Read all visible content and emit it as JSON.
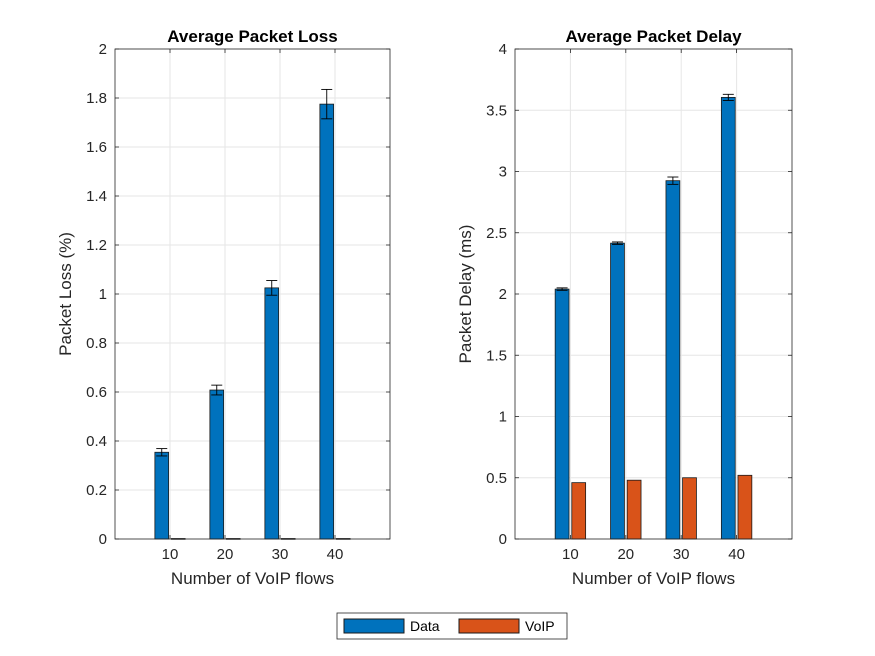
{
  "chart_data": [
    {
      "type": "bar",
      "title": "Average Packet Loss",
      "xlabel": "Number of VoIP flows",
      "ylabel": "Packet Loss (%)",
      "categories": [
        "10",
        "20",
        "30",
        "40"
      ],
      "ylim": [
        0,
        2
      ],
      "yticks": [
        "0",
        "0.2",
        "0.4",
        "0.6",
        "0.8",
        "1",
        "1.2",
        "1.4",
        "1.6",
        "1.8",
        "2"
      ],
      "grid": true,
      "series": [
        {
          "name": "Data",
          "values": [
            0.354,
            0.608,
            1.025,
            1.775
          ],
          "err_low": [
            0.339,
            0.588,
            0.995,
            1.715
          ],
          "err_high": [
            0.369,
            0.628,
            1.055,
            1.835
          ]
        },
        {
          "name": "VoIP",
          "values": [
            0.002,
            0.002,
            0.002,
            0.002
          ]
        }
      ]
    },
    {
      "type": "bar",
      "title": "Average Packet Delay",
      "xlabel": "Number of VoIP flows",
      "ylabel": "Packet Delay (ms)",
      "categories": [
        "10",
        "20",
        "30",
        "40"
      ],
      "ylim": [
        0,
        4
      ],
      "yticks": [
        "0",
        "0.5",
        "1",
        "1.5",
        "2",
        "2.5",
        "3",
        "3.5",
        "4"
      ],
      "grid": true,
      "series": [
        {
          "name": "Data",
          "values": [
            2.04,
            2.415,
            2.925,
            3.605
          ],
          "err_low": [
            2.03,
            2.405,
            2.895,
            3.58
          ],
          "err_high": [
            2.05,
            2.425,
            2.955,
            3.63
          ]
        },
        {
          "name": "VoIP",
          "values": [
            0.46,
            0.48,
            0.5,
            0.52
          ]
        }
      ]
    }
  ],
  "legend": {
    "placement": "bottom-center",
    "items": [
      {
        "label": "Data",
        "color": "#0072BD"
      },
      {
        "label": "VoIP",
        "color": "#D95319"
      }
    ]
  },
  "colors": {
    "data": "#0072BD",
    "voip": "#D95319",
    "grid": "#e6e6e6",
    "axis": "#262626"
  }
}
